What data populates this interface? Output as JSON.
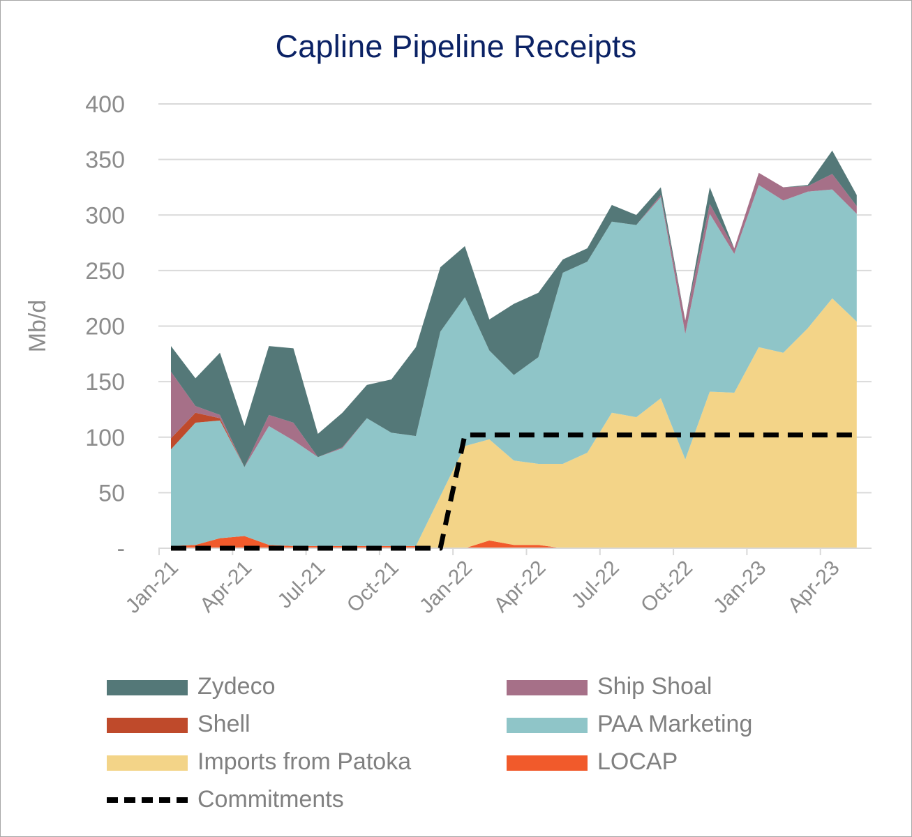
{
  "chart_data": {
    "type": "area",
    "title": "Capline Pipeline Receipts",
    "ylabel": "Mb/d",
    "xlabel": "",
    "ylim": [
      0,
      400
    ],
    "yticks": [
      0,
      50,
      100,
      150,
      200,
      250,
      300,
      350,
      400
    ],
    "ytick_labels": [
      "-",
      "50",
      "100",
      "150",
      "200",
      "250",
      "300",
      "350",
      "400"
    ],
    "xtick_labels": [
      "Jan-21",
      "Apr-21",
      "Jul-21",
      "Oct-21",
      "Jan-22",
      "Apr-22",
      "Jul-22",
      "Oct-22",
      "Jan-23",
      "Apr-23"
    ],
    "x": [
      "Jan-21",
      "Feb-21",
      "Mar-21",
      "Apr-21",
      "May-21",
      "Jun-21",
      "Jul-21",
      "Aug-21",
      "Sep-21",
      "Oct-21",
      "Nov-21",
      "Dec-21",
      "Jan-22",
      "Feb-22",
      "Mar-22",
      "Apr-22",
      "May-22",
      "Jun-22",
      "Jul-22",
      "Aug-22",
      "Sep-22",
      "Oct-22",
      "Nov-22",
      "Dec-22",
      "Jan-23",
      "Feb-23",
      "Mar-23",
      "Apr-23",
      "May-23"
    ],
    "grid": true,
    "legend_position": "bottom",
    "stacked": true,
    "series": [
      {
        "name": "LOCAP",
        "color": "#f15a2b",
        "values": [
          2,
          3,
          9,
          11,
          3,
          2,
          2,
          2,
          2,
          2,
          2,
          0,
          0,
          7,
          3,
          3,
          0,
          0,
          0,
          0,
          0,
          0,
          0,
          0,
          0,
          0,
          0,
          0,
          0
        ]
      },
      {
        "name": "Imports from Patoka",
        "color": "#f3d488",
        "values": [
          0,
          0,
          0,
          0,
          0,
          0,
          0,
          0,
          0,
          0,
          0,
          47,
          92,
          91,
          76,
          73,
          76,
          86,
          122,
          118,
          135,
          80,
          141,
          140,
          181,
          176,
          198,
          225,
          204
        ]
      },
      {
        "name": "PAA Marketing",
        "color": "#8fc5c8",
        "values": [
          87,
          110,
          106,
          62,
          107,
          95,
          80,
          88,
          115,
          102,
          99,
          148,
          134,
          80,
          77,
          96,
          172,
          172,
          172,
          173,
          181,
          113,
          160,
          125,
          146,
          137,
          123,
          98,
          97
        ]
      },
      {
        "name": "Shell",
        "color": "#bf4a2b",
        "values": [
          10,
          9,
          2,
          0,
          0,
          0,
          0,
          0,
          0,
          0,
          0,
          0,
          0,
          0,
          0,
          0,
          0,
          0,
          0,
          0,
          0,
          0,
          0,
          0,
          0,
          0,
          0,
          0,
          0
        ]
      },
      {
        "name": "Ship Shoal",
        "color": "#a67088",
        "values": [
          60,
          6,
          3,
          0,
          10,
          16,
          0,
          1,
          0,
          0,
          0,
          0,
          0,
          0,
          0,
          0,
          0,
          0,
          0,
          0,
          2,
          12,
          9,
          5,
          11,
          12,
          5,
          14,
          7
        ]
      },
      {
        "name": "Zydeco",
        "color": "#547878",
        "values": [
          23,
          25,
          56,
          37,
          62,
          67,
          21,
          31,
          30,
          48,
          80,
          58,
          46,
          28,
          64,
          58,
          12,
          12,
          15,
          9,
          7,
          0,
          15,
          0,
          0,
          0,
          1,
          21,
          10
        ]
      }
    ],
    "commitments": {
      "name": "Commitments",
      "color": "#000000",
      "style": "dashed",
      "values": [
        0,
        0,
        0,
        0,
        0,
        0,
        0,
        0,
        0,
        0,
        0,
        0,
        102,
        102,
        102,
        102,
        102,
        102,
        102,
        102,
        102,
        102,
        102,
        102,
        102,
        102,
        102,
        102,
        102
      ]
    }
  },
  "legend": [
    {
      "label": "Zydeco",
      "color": "#547878",
      "type": "area"
    },
    {
      "label": "Ship Shoal",
      "color": "#a67088",
      "type": "area"
    },
    {
      "label": "Shell",
      "color": "#bf4a2b",
      "type": "area"
    },
    {
      "label": "PAA Marketing",
      "color": "#8fc5c8",
      "type": "area"
    },
    {
      "label": "Imports from Patoka",
      "color": "#f3d488",
      "type": "area"
    },
    {
      "label": "LOCAP",
      "color": "#f15a2b",
      "type": "area"
    },
    {
      "label": "Commitments",
      "color": "#000000",
      "type": "dashed"
    }
  ]
}
